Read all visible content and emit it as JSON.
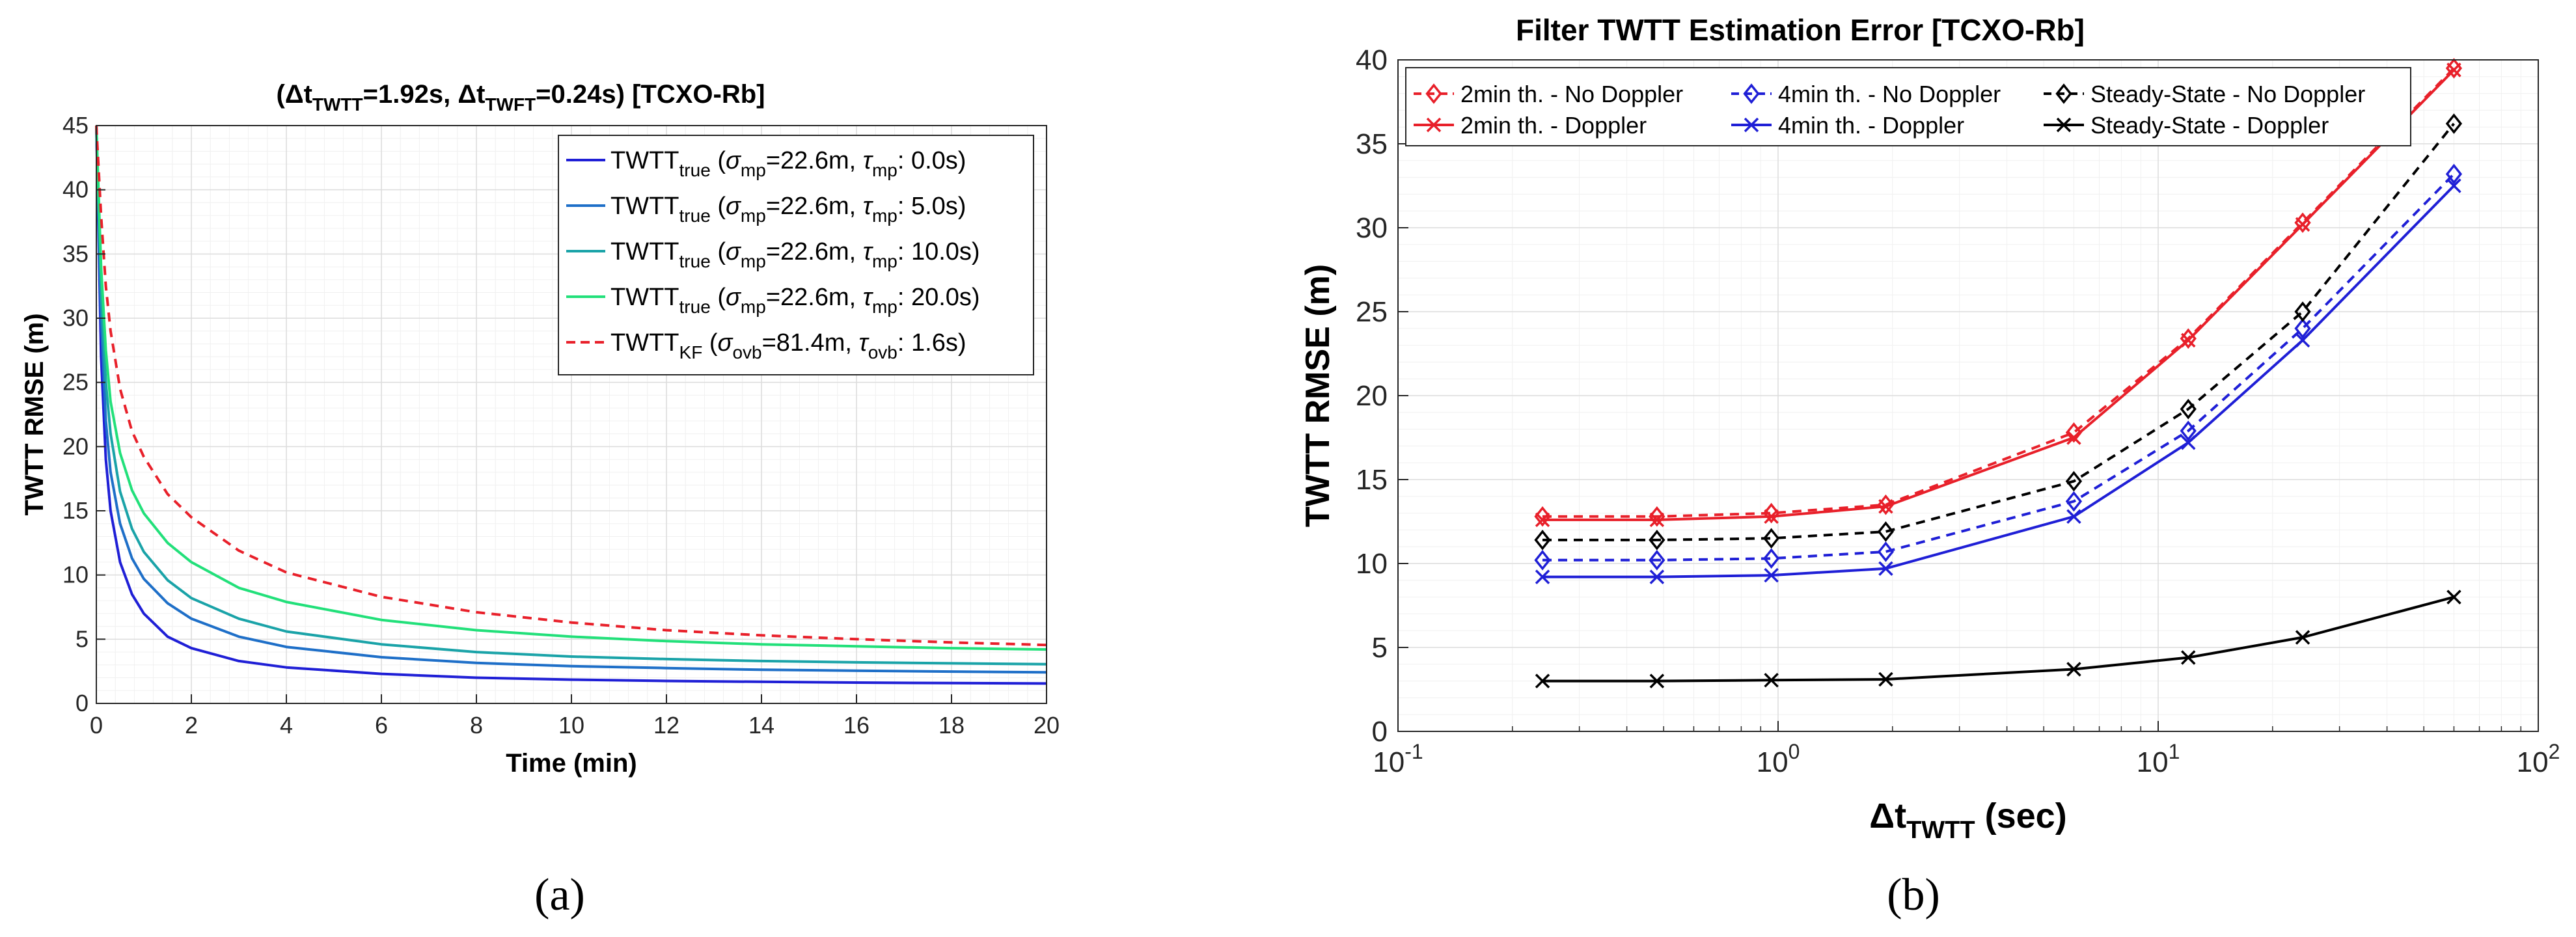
{
  "figure": {
    "label_a": "(a)",
    "label_b": "(b)"
  },
  "chart_data": [
    {
      "type": "line",
      "title": {
        "prefix": "(Δt",
        "sub1": "TWTT",
        "mid": "=1.92s, Δt",
        "sub2": "TWFT",
        "suffix": "=0.24s) [TCXO-Rb]"
      },
      "xlabel": "Time (min)",
      "ylabel": "TWTT RMSE (m)",
      "xlim": [
        0,
        20
      ],
      "ylim": [
        0,
        45
      ],
      "xticks": [
        "0",
        "2",
        "4",
        "6",
        "8",
        "10",
        "12",
        "14",
        "16",
        "18",
        "20"
      ],
      "yticks": [
        "0",
        "5",
        "10",
        "15",
        "20",
        "25",
        "30",
        "35",
        "40",
        "45"
      ],
      "grid": true,
      "legend_position": "top-right",
      "series": [
        {
          "name": "TWTT_true (sigma_mp=22.6m, tau_mp: 0.0s)",
          "color": "#1f1fd6",
          "dash": "solid",
          "legend": {
            "main": "TWTT",
            "sub": "true",
            "p1": " (",
            "g1": "σ",
            "s1": "mp",
            "p2": "=22.6m, ",
            "g2": "τ",
            "s2": "mp",
            "p3": ": 0.0s)"
          },
          "x": [
            0,
            0.1,
            0.2,
            0.3,
            0.5,
            0.75,
            1,
            1.5,
            2,
            3,
            4,
            6,
            8,
            10,
            12,
            14,
            16,
            18,
            20
          ],
          "values": [
            45,
            27,
            19,
            15,
            11,
            8.5,
            7,
            5.2,
            4.3,
            3.3,
            2.8,
            2.3,
            2.0,
            1.85,
            1.75,
            1.68,
            1.62,
            1.58,
            1.55
          ]
        },
        {
          "name": "TWTT_true (sigma_mp=22.6m, tau_mp: 5.0s)",
          "color": "#1e6fc8",
          "dash": "solid",
          "legend": {
            "main": "TWTT",
            "sub": "true",
            "p1": " (",
            "g1": "σ",
            "s1": "mp",
            "p2": "=22.6m, ",
            "g2": "τ",
            "s2": "mp",
            "p3": ": 5.0s)"
          },
          "x": [
            0,
            0.1,
            0.2,
            0.3,
            0.5,
            0.75,
            1,
            1.5,
            2,
            3,
            4,
            6,
            8,
            10,
            12,
            14,
            16,
            18,
            20
          ],
          "values": [
            45,
            30,
            22,
            18,
            14,
            11.3,
            9.7,
            7.8,
            6.6,
            5.2,
            4.4,
            3.6,
            3.15,
            2.9,
            2.75,
            2.62,
            2.55,
            2.48,
            2.42
          ]
        },
        {
          "name": "TWTT_true (sigma_mp=22.6m, tau_mp: 10.0s)",
          "color": "#1aa3a8",
          "dash": "solid",
          "legend": {
            "main": "TWTT",
            "sub": "true",
            "p1": " (",
            "g1": "σ",
            "s1": "mp",
            "p2": "=22.6m, ",
            "g2": "τ",
            "s2": "mp",
            "p3": ": 10.0s)"
          },
          "x": [
            0,
            0.1,
            0.2,
            0.3,
            0.5,
            0.75,
            1,
            1.5,
            2,
            3,
            4,
            6,
            8,
            10,
            12,
            14,
            16,
            18,
            20
          ],
          "values": [
            45,
            32,
            25,
            21,
            16.5,
            13.6,
            11.8,
            9.6,
            8.2,
            6.6,
            5.6,
            4.6,
            4.0,
            3.65,
            3.45,
            3.3,
            3.2,
            3.12,
            3.05
          ]
        },
        {
          "name": "TWTT_true (sigma_mp=22.6m, tau_mp: 20.0s)",
          "color": "#22e07a",
          "dash": "solid",
          "legend": {
            "main": "TWTT",
            "sub": "true",
            "p1": " (",
            "g1": "σ",
            "s1": "mp",
            "p2": "=22.6m, ",
            "g2": "τ",
            "s2": "mp",
            "p3": ": 20.0s)"
          },
          "x": [
            0,
            0.1,
            0.2,
            0.3,
            0.5,
            0.75,
            1,
            1.5,
            2,
            3,
            4,
            6,
            8,
            10,
            12,
            14,
            16,
            18,
            20
          ],
          "values": [
            45,
            34,
            27.5,
            23.5,
            19.5,
            16.6,
            14.8,
            12.5,
            11.0,
            9.0,
            7.9,
            6.5,
            5.7,
            5.2,
            4.85,
            4.6,
            4.45,
            4.3,
            4.2
          ]
        },
        {
          "name": "TWTT_KF (sigma_ovb=81.4m, tau_ovb: 1.6s)",
          "color": "#e8202a",
          "dash": "dashed",
          "legend": {
            "main": "TWTT",
            "sub": "KF",
            "p1": " (",
            "g1": "σ",
            "s1": "ovb",
            "p2": "=81.4m, ",
            "g2": "τ",
            "s2": "ovb",
            "p3": ": 1.6s)"
          },
          "x": [
            0,
            0.1,
            0.2,
            0.3,
            0.5,
            0.75,
            1,
            1.5,
            2,
            3,
            4,
            6,
            8,
            10,
            12,
            14,
            16,
            18,
            20
          ],
          "values": [
            45,
            38,
            32.5,
            29,
            24.5,
            21.2,
            19.2,
            16.3,
            14.5,
            11.9,
            10.2,
            8.3,
            7.1,
            6.3,
            5.7,
            5.3,
            5.0,
            4.75,
            4.55
          ]
        }
      ]
    },
    {
      "type": "line",
      "title": "Filter TWTT Estimation Error [TCXO-Rb]",
      "xlabel": {
        "prefix": "Δt",
        "sub": "TWTT",
        "suffix": " (sec)"
      },
      "ylabel": "TWTT RMSE (m)",
      "xscale": "log",
      "xlim": [
        0.1,
        100
      ],
      "ylim": [
        0,
        40
      ],
      "xticks": [
        {
          "base": "10",
          "exp": "-1"
        },
        {
          "base": "10",
          "exp": "0"
        },
        {
          "base": "10",
          "exp": "1"
        },
        {
          "base": "10",
          "exp": "2"
        }
      ],
      "yticks": [
        "0",
        "5",
        "10",
        "15",
        "20",
        "25",
        "30",
        "35",
        "40"
      ],
      "grid": true,
      "legend_position": "top",
      "x": [
        0.24,
        0.48,
        0.96,
        1.92,
        6,
        12,
        24,
        60
      ],
      "series": [
        {
          "name": "2min th. - No Doppler",
          "color": "#e8202a",
          "dash": "dashed",
          "marker": "diamond",
          "values": [
            12.8,
            12.8,
            13.0,
            13.5,
            17.8,
            23.4,
            30.3,
            39.5
          ]
        },
        {
          "name": "2min th. - Doppler",
          "color": "#e8202a",
          "dash": "solid",
          "marker": "x",
          "values": [
            12.6,
            12.6,
            12.8,
            13.4,
            17.5,
            23.3,
            30.2,
            39.4
          ]
        },
        {
          "name": "4min th. - No Doppler",
          "color": "#1f1fd6",
          "dash": "dashed",
          "marker": "diamond",
          "values": [
            10.2,
            10.2,
            10.3,
            10.7,
            13.7,
            17.9,
            24.0,
            33.2
          ]
        },
        {
          "name": "4min th. - Doppler",
          "color": "#1f1fd6",
          "dash": "solid",
          "marker": "x",
          "values": [
            9.2,
            9.2,
            9.3,
            9.7,
            12.8,
            17.2,
            23.3,
            32.5
          ]
        },
        {
          "name": "Steady-State - No Doppler",
          "color": "#000000",
          "dash": "dashed",
          "marker": "diamond",
          "values": [
            11.4,
            11.4,
            11.5,
            11.9,
            14.9,
            19.2,
            25.0,
            36.2
          ]
        },
        {
          "name": "Steady-State - Doppler",
          "color": "#000000",
          "dash": "solid",
          "marker": "x",
          "values": [
            3.0,
            3.0,
            3.05,
            3.1,
            3.7,
            4.4,
            5.6,
            8.0
          ]
        }
      ]
    }
  ]
}
